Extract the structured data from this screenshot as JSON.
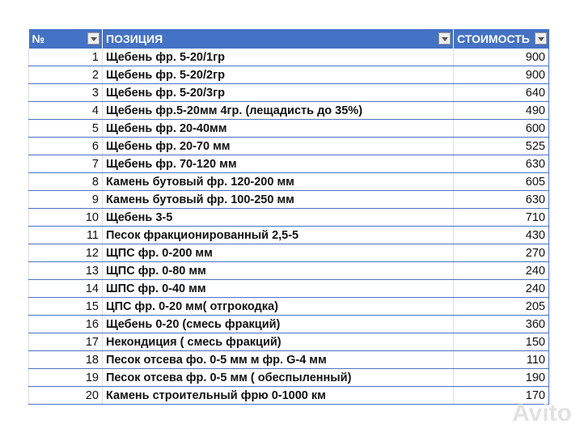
{
  "header": {
    "num": "№",
    "position": "ПОЗИЦИЯ",
    "cost": "СТОИМОСТЬ"
  },
  "header_color": "#4472c4",
  "rows": [
    {
      "n": "1",
      "name": "Щебень фр. 5-20/1гр",
      "price": "900"
    },
    {
      "n": "2",
      "name": "Щебень фр. 5-20/2гр",
      "price": "900"
    },
    {
      "n": "3",
      "name": "Щебень фр. 5-20/3гр",
      "price": "640"
    },
    {
      "n": "4",
      "name": "Щебень фр.5-20мм 4гр. (лещадисть до 35%)",
      "price": "490"
    },
    {
      "n": "5",
      "name": "Щебень фр. 20-40мм",
      "price": "600"
    },
    {
      "n": "6",
      "name": "Щебень фр. 20-70 мм",
      "price": "525"
    },
    {
      "n": "7",
      "name": "Щебень фр. 70-120 мм",
      "price": "630"
    },
    {
      "n": "8",
      "name": "Камень бутовый фр. 120-200 мм",
      "price": "605"
    },
    {
      "n": "9",
      "name": "Камень бутовый фр. 100-250 мм",
      "price": "630"
    },
    {
      "n": "10",
      "name": "Щебень 3-5",
      "price": "710"
    },
    {
      "n": "11",
      "name": "Песок фракционированный 2,5-5",
      "price": "430"
    },
    {
      "n": "12",
      "name": "ЩПС фр. 0-200 мм",
      "price": "270"
    },
    {
      "n": "13",
      "name": "ЩПС фр. 0-80 мм",
      "price": "240"
    },
    {
      "n": "14",
      "name": "ШПС фр. 0-40 мм",
      "price": "240"
    },
    {
      "n": "15",
      "name": "ЦПС фр. 0-20 мм( отгрокодка)",
      "price": "205"
    },
    {
      "n": "16",
      "name": "Щебень 0-20 (смесь фракций)",
      "price": "360"
    },
    {
      "n": "17",
      "name": "Некондиция ( смесь фракций)",
      "price": "150"
    },
    {
      "n": "18",
      "name": "Песок отсева фо. 0-5 мм м фр. G-4 мм",
      "price": "110"
    },
    {
      "n": "19",
      "name": "Песок отсева фр. 0-5 мм ( обеспыленный)",
      "price": "190"
    },
    {
      "n": "20",
      "name": "Камень строительный фрю 0-1000 км",
      "price": "170"
    }
  ],
  "watermark": "Avito"
}
